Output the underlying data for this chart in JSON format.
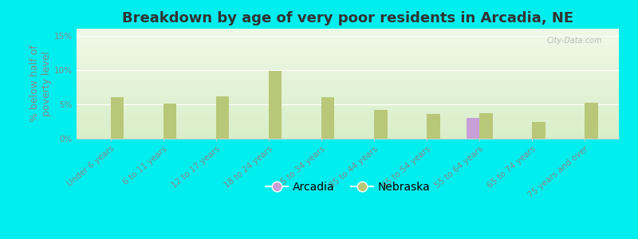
{
  "title": "Breakdown by age of very poor residents in Arcadia, NE",
  "ylabel": "% below half of\npoverty level",
  "categories": [
    "Under 6 years",
    "6 to 11 years",
    "12 to 17 years",
    "18 to 24 years",
    "25 to 34 years",
    "35 to 44 years",
    "45 to 54 years",
    "55 to 64 years",
    "65 to 74 years",
    "75 years and over"
  ],
  "nebraska_values": [
    6.0,
    5.1,
    6.2,
    9.8,
    6.0,
    4.2,
    3.6,
    3.7,
    2.4,
    5.2
  ],
  "arcadia_values": [
    0.0,
    0.0,
    0.0,
    0.0,
    0.0,
    0.0,
    0.0,
    3.0,
    0.0,
    0.0
  ],
  "nebraska_color": "#b8c878",
  "arcadia_color": "#c8a0d8",
  "background_top": "#f0f8e8",
  "background_bottom": "#d8eec8",
  "bg_outer": "#00eeee",
  "ylim": [
    0,
    16
  ],
  "yticks": [
    0,
    5,
    10,
    15
  ],
  "ytick_labels": [
    "0%",
    "5%",
    "10%",
    "15%"
  ],
  "bar_width": 0.5,
  "title_fontsize": 13,
  "legend_fontsize": 10,
  "tick_fontsize": 7.5,
  "ylabel_fontsize": 9,
  "watermark": "City-Data.com"
}
